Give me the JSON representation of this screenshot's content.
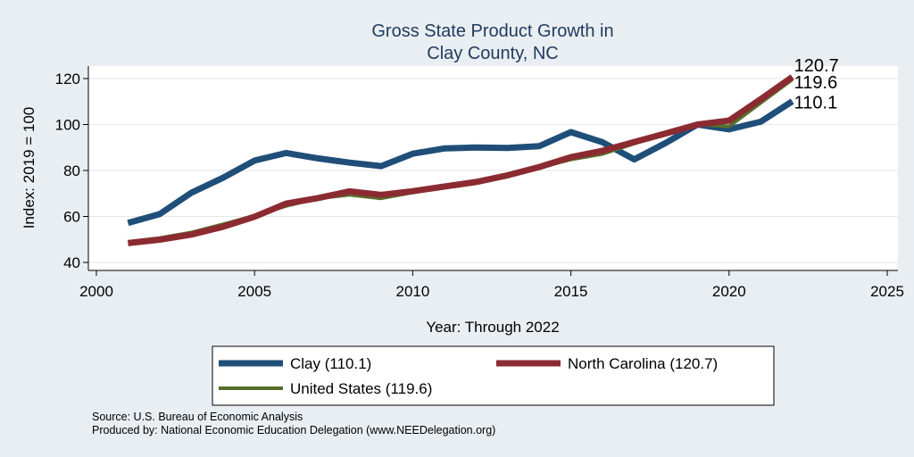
{
  "chart_data": {
    "type": "line",
    "title_lines": [
      "Gross State Product Growth in",
      "Clay County, NC"
    ],
    "xlabel": "Year: Through 2022",
    "ylabel": "Index: 2019 = 100",
    "xlim": [
      2000,
      2025
    ],
    "ylim": [
      40,
      125
    ],
    "xticks": [
      2000,
      2005,
      2010,
      2015,
      2020,
      2025
    ],
    "yticks": [
      40,
      60,
      80,
      100,
      120
    ],
    "grid": true,
    "legend_position": "bottom",
    "x": [
      2001,
      2002,
      2003,
      2004,
      2005,
      2006,
      2007,
      2008,
      2009,
      2010,
      2011,
      2012,
      2013,
      2014,
      2015,
      2016,
      2017,
      2018,
      2019,
      2020,
      2021,
      2022
    ],
    "series": [
      {
        "name": "Clay",
        "legend": "Clay  (110.1)",
        "color": "#1f4e79",
        "end_label": "110.1",
        "values": [
          57.2,
          61.0,
          70.3,
          76.8,
          84.3,
          87.6,
          85.3,
          83.4,
          81.9,
          87.3,
          89.6,
          90.0,
          89.8,
          90.6,
          96.7,
          92.3,
          84.8,
          92.0,
          100.0,
          97.9,
          101.2,
          110.1
        ]
      },
      {
        "name": "North Carolina",
        "legend": "North Carolina (120.7)",
        "color": "#8b2b31",
        "end_label": "120.7",
        "values": [
          48.4,
          49.9,
          52.1,
          55.5,
          59.9,
          65.6,
          68.0,
          70.9,
          69.4,
          71.0,
          73.0,
          75.0,
          77.9,
          81.5,
          85.8,
          88.6,
          92.4,
          96.1,
          100.0,
          101.7,
          111.0,
          120.7
        ]
      },
      {
        "name": "United States",
        "legend": "United States (119.6)",
        "color": "#56702b",
        "end_label": "119.6",
        "values": [
          49.0,
          50.6,
          53.0,
          56.6,
          60.3,
          64.6,
          67.9,
          69.4,
          67.9,
          70.4,
          72.9,
          75.5,
          78.2,
          81.3,
          84.8,
          87.2,
          91.7,
          96.0,
          100.0,
          99.2,
          109.4,
          119.6
        ]
      }
    ]
  },
  "notes": {
    "source": "Source: U.S. Bureau of Economic Analysis",
    "produced": "Produced by: National Economic Education Delegation (www.NEEDelegation.org)"
  }
}
